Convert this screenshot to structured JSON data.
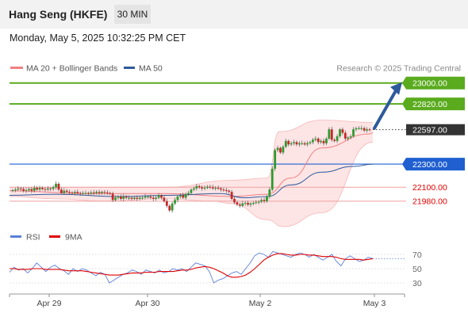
{
  "header": {
    "title": "Hang Seng (HKFE)",
    "timeframe": "30 MIN",
    "datetime": "Monday, May 5, 2025 10:32:25 PM CET"
  },
  "legend": {
    "bollinger": {
      "label": "MA 20 + Bollinger Bands",
      "color": "#f08080"
    },
    "ma50": {
      "label": "MA 50",
      "color": "#2e5a9c"
    },
    "credit": "Research © 2025 Trading Central"
  },
  "rsi_legend": {
    "rsi": {
      "label": "RSI",
      "color": "#5b7fd8"
    },
    "ma9": {
      "label": "9MA",
      "color": "#e00000"
    }
  },
  "chart_data": [
    {
      "type": "line",
      "title": "",
      "ylim": [
        21760,
        23060
      ],
      "x_ticks": [
        "Apr 29",
        "Apr 30",
        "May 2",
        "May 3"
      ],
      "levels": [
        {
          "label": "23000.00",
          "value": 23000,
          "style": "resistance",
          "color": "#5aab1e"
        },
        {
          "label": "22820.00",
          "value": 22820,
          "style": "resistance",
          "color": "#5aab1e"
        },
        {
          "label": "22597.00",
          "value": 22597,
          "style": "last-price",
          "color": "#333333"
        },
        {
          "label": "22300.00",
          "value": 22300,
          "style": "pivot",
          "color": "#1f5fd0"
        },
        {
          "label": "22100.00",
          "value": 22100,
          "style": "support",
          "color": "#e00000"
        },
        {
          "label": "21980.00",
          "value": 21980,
          "style": "support",
          "color": "#e00000"
        }
      ],
      "candles": [
        22075,
        22080,
        22090,
        22085,
        22070,
        22075,
        22085,
        22070,
        22095,
        22080,
        22095,
        22085,
        22080,
        22090,
        22085,
        22100,
        22130,
        22080,
        22050,
        22070,
        22060,
        22055,
        22050,
        22060,
        22050,
        22045,
        22050,
        22050,
        22045,
        22055,
        22050,
        22060,
        22050,
        22060,
        22055,
        22050,
        22045,
        21990,
        22010,
        22020,
        22000,
        22020,
        22010,
        22010,
        22000,
        22010,
        22000,
        22010,
        22010,
        22020,
        22020,
        22010,
        22000,
        22010,
        22030,
        22010,
        21980,
        21940,
        21900,
        21960,
        21990,
        22020,
        22030,
        22010,
        22040,
        22050,
        22080,
        22090,
        22110,
        22100,
        22090,
        22095,
        22105,
        22100,
        22090,
        22095,
        22090,
        22080,
        22075,
        22070,
        22060,
        22000,
        21970,
        21950,
        21940,
        21960,
        21965,
        21950,
        21960,
        21965,
        21970,
        21975,
        21990,
        21980,
        22020,
        22080,
        22260,
        22420,
        22440,
        22400,
        22450,
        22500,
        22470,
        22480,
        22490,
        22470,
        22480,
        22480,
        22470,
        22480,
        22490,
        22510,
        22520,
        22490,
        22500,
        22480,
        22520,
        22600,
        22510,
        22500,
        22540,
        22600,
        22570,
        22520,
        22530,
        22540,
        22600,
        22610,
        22610,
        22610,
        22590,
        22600,
        22597
      ],
      "bollinger_mid": [
        [
          0,
          22070
        ],
        [
          100,
          22045
        ],
        [
          200,
          22045
        ],
        [
          285,
          22020
        ],
        [
          330,
          22040
        ],
        [
          360,
          22180
        ],
        [
          400,
          22440
        ],
        [
          460,
          22560
        ],
        [
          465,
          22570
        ]
      ],
      "bollinger_upper": [
        [
          0,
          22100
        ],
        [
          100,
          22100
        ],
        [
          200,
          22100
        ],
        [
          285,
          22160
        ],
        [
          330,
          22180
        ],
        [
          345,
          22580
        ],
        [
          400,
          22680
        ],
        [
          465,
          22660
        ]
      ],
      "bollinger_lower": [
        [
          0,
          22020
        ],
        [
          60,
          22000
        ],
        [
          120,
          21980
        ],
        [
          200,
          22000
        ],
        [
          260,
          21980
        ],
        [
          285,
          21960
        ],
        [
          330,
          21820
        ],
        [
          350,
          21760
        ],
        [
          400,
          21880
        ],
        [
          465,
          22490
        ]
      ],
      "ma50": [
        [
          0,
          22030
        ],
        [
          60,
          22040
        ],
        [
          140,
          22020
        ],
        [
          200,
          22030
        ],
        [
          270,
          22045
        ],
        [
          300,
          22010
        ],
        [
          330,
          22020
        ],
        [
          360,
          22120
        ],
        [
          400,
          22230
        ],
        [
          440,
          22280
        ],
        [
          465,
          22300
        ]
      ],
      "arrow": {
        "from": [
          22610,
          22610
        ],
        "to": [
          22980,
          22980
        ]
      }
    },
    {
      "type": "line",
      "title": "",
      "ylim": [
        20,
        80
      ],
      "y_ticks": [
        "70",
        "50",
        "30"
      ],
      "series": [
        {
          "name": "RSI",
          "values": [
            45,
            52,
            48,
            50,
            44,
            50,
            58,
            52,
            46,
            52,
            55,
            50,
            47,
            42,
            50,
            46,
            50,
            48,
            44,
            40,
            45,
            42,
            30,
            34,
            38,
            42,
            44,
            48,
            46,
            42,
            48,
            46,
            44,
            48,
            44,
            46,
            50,
            48,
            50,
            46,
            52,
            58,
            56,
            54,
            46,
            30,
            34,
            36,
            40,
            44,
            46,
            42,
            50,
            58,
            68,
            72,
            70,
            66,
            74,
            72,
            70,
            68,
            66,
            70,
            72,
            70,
            66,
            70,
            66,
            62,
            66,
            70,
            60,
            54,
            64,
            68,
            64,
            60,
            62,
            66,
            64
          ]
        },
        {
          "name": "9MA",
          "values": [
            50,
            50,
            49,
            49,
            49,
            50,
            50,
            50,
            49,
            49,
            49,
            49,
            48,
            47,
            47,
            47,
            47,
            46,
            45,
            44,
            43,
            42,
            41,
            41,
            41,
            42,
            43,
            44,
            44,
            44,
            45,
            45,
            45,
            46,
            46,
            46,
            46,
            47,
            48,
            48,
            49,
            51,
            52,
            53,
            52,
            50,
            47,
            44,
            40,
            38,
            38,
            39,
            41,
            45,
            50,
            56,
            62,
            66,
            69,
            71,
            71,
            70,
            69,
            69,
            70,
            70,
            69,
            69,
            68,
            67,
            67,
            67,
            66,
            64,
            63,
            63,
            63,
            63,
            62,
            63,
            64
          ]
        }
      ]
    }
  ]
}
